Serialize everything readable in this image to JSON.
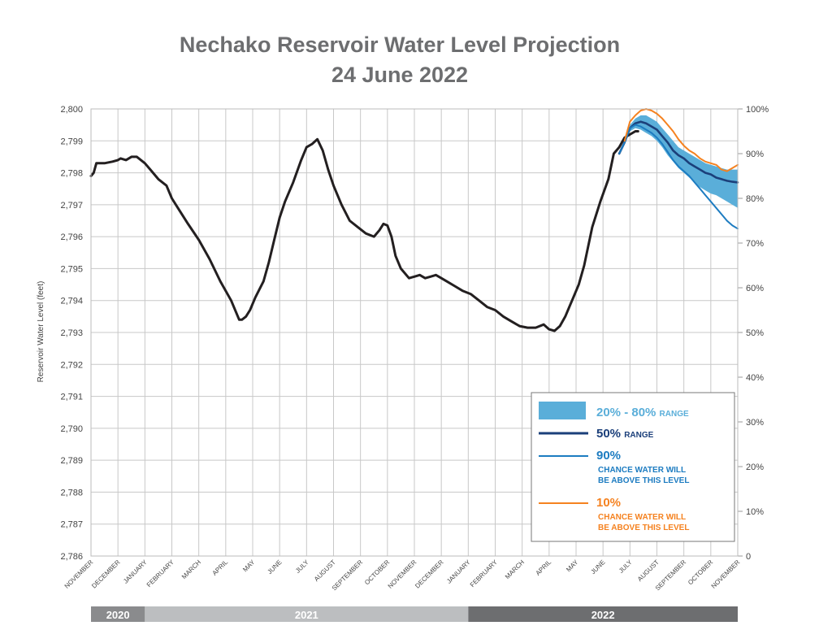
{
  "chart_data": {
    "type": "line",
    "title_line1": "Nechako Reservoir Water Level Projection",
    "title_line2": "24 June 2022",
    "ylabel": "Reservoir Water Level (feet)",
    "ylim": [
      2786,
      2800
    ],
    "yticks": [
      "2,786",
      "2,787",
      "2,788",
      "2,789",
      "2,790",
      "2,791",
      "2,792",
      "2,793",
      "2,794",
      "2,795",
      "2,796",
      "2,797",
      "2,798",
      "2,799",
      "2,800"
    ],
    "y2ticks": [
      "0",
      "10%",
      "20%",
      "30%",
      "40%",
      "50%",
      "60%",
      "70%",
      "80%",
      "90%",
      "100%"
    ],
    "grid": true,
    "x_months": [
      "NOVEMBER",
      "DECEMBER",
      "JANUARY",
      "FEBRUARY",
      "MARCH",
      "APRIL",
      "MAY",
      "JUNE",
      "JULY",
      "AUGUST",
      "SEPTEMBER",
      "OCTOBER",
      "NOVEMBER",
      "DECEMBER",
      "JANUARY",
      "FEBRUARY",
      "MARCH",
      "APRIL",
      "MAY",
      "JUNE",
      "JULY",
      "AUGUST",
      "SEPTEMBER",
      "OCTOBER",
      "NOVEMBER"
    ],
    "years": [
      {
        "label": "2020",
        "start": 0,
        "end": 2,
        "color": "#8a8b8d"
      },
      {
        "label": "2021",
        "start": 2,
        "end": 14,
        "color": "#bcbec0"
      },
      {
        "label": "2022",
        "start": 14,
        "end": 24,
        "color": "#6d6e70"
      }
    ],
    "legend_position": "lower-right",
    "series": [
      {
        "name": "historical",
        "color": "#231f20",
        "x": [
          0,
          0.1,
          0.2,
          0.5,
          0.8,
          1.0,
          1.1,
          1.3,
          1.5,
          1.7,
          2.0,
          2.2,
          2.5,
          2.8,
          3.0,
          3.3,
          3.6,
          4.0,
          4.4,
          4.8,
          5.2,
          5.5,
          5.6,
          5.75,
          5.9,
          6.1,
          6.4,
          6.6,
          6.8,
          7.0,
          7.2,
          7.5,
          7.8,
          8.0,
          8.2,
          8.4,
          8.6,
          8.8,
          9.0,
          9.3,
          9.6,
          9.9,
          10.2,
          10.5,
          10.7,
          10.85,
          11.0,
          11.15,
          11.3,
          11.5,
          11.8,
          12.0,
          12.2,
          12.4,
          12.6,
          12.8,
          13.0,
          13.2,
          13.5,
          13.8,
          14.1,
          14.4,
          14.7,
          15.0,
          15.3,
          15.6,
          15.9,
          16.2,
          16.5,
          16.8,
          17.0,
          17.2,
          17.4,
          17.6,
          17.75,
          17.9,
          18.1,
          18.3,
          18.6,
          18.9,
          19.2,
          19.4,
          19.6,
          19.8,
          20.0,
          20.2,
          20.3
        ],
        "values": [
          2797.9,
          2798.0,
          2798.3,
          2798.3,
          2798.35,
          2798.4,
          2798.45,
          2798.4,
          2798.5,
          2798.5,
          2798.3,
          2798.1,
          2797.8,
          2797.6,
          2797.2,
          2796.8,
          2796.4,
          2795.9,
          2795.3,
          2794.6,
          2794.0,
          2793.4,
          2793.4,
          2793.5,
          2793.7,
          2794.1,
          2794.6,
          2795.2,
          2795.9,
          2796.6,
          2797.1,
          2797.7,
          2798.4,
          2798.8,
          2798.9,
          2799.05,
          2798.7,
          2798.1,
          2797.6,
          2797.0,
          2796.5,
          2796.3,
          2796.1,
          2796.0,
          2796.2,
          2796.4,
          2796.35,
          2796.0,
          2795.4,
          2795.0,
          2794.7,
          2794.75,
          2794.8,
          2794.7,
          2794.75,
          2794.8,
          2794.7,
          2794.6,
          2794.45,
          2794.3,
          2794.2,
          2794.0,
          2793.8,
          2793.7,
          2793.5,
          2793.35,
          2793.2,
          2793.15,
          2793.15,
          2793.25,
          2793.1,
          2793.05,
          2793.2,
          2793.5,
          2793.8,
          2794.1,
          2794.5,
          2795.1,
          2796.3,
          2797.1,
          2797.8,
          2798.6,
          2798.8,
          2799.1,
          2799.2,
          2799.3,
          2799.3
        ]
      },
      {
        "name": "50% RANGE",
        "color": "#1b3f7a",
        "x": [
          19.6,
          19.8,
          20.0,
          20.2,
          20.4,
          20.6,
          20.8,
          21.0,
          21.2,
          21.4,
          21.6,
          21.8,
          22.0,
          22.2,
          22.4,
          22.6,
          22.8,
          23.0,
          23.2,
          23.4,
          23.6,
          23.8,
          24.0
        ],
        "values": [
          2798.6,
          2798.95,
          2799.4,
          2799.55,
          2799.6,
          2799.55,
          2799.45,
          2799.35,
          2799.15,
          2798.95,
          2798.7,
          2798.55,
          2798.45,
          2798.3,
          2798.2,
          2798.1,
          2798.0,
          2797.95,
          2797.85,
          2797.8,
          2797.75,
          2797.72,
          2797.7
        ]
      },
      {
        "name": "90%",
        "color": "#1d7cc1",
        "x": [
          19.6,
          19.8,
          20.0,
          20.2,
          20.4,
          20.6,
          20.8,
          21.0,
          21.2,
          21.4,
          21.6,
          21.8,
          22.0,
          22.2,
          22.4,
          22.6,
          22.8,
          23.0,
          23.2,
          23.4,
          23.6,
          23.8,
          24.0
        ],
        "values": [
          2798.6,
          2798.95,
          2799.4,
          2799.5,
          2799.45,
          2799.35,
          2799.25,
          2799.1,
          2798.9,
          2798.65,
          2798.4,
          2798.2,
          2798.05,
          2797.9,
          2797.7,
          2797.5,
          2797.3,
          2797.1,
          2796.9,
          2796.7,
          2796.5,
          2796.35,
          2796.25
        ]
      },
      {
        "name": "10%",
        "color": "#f58220",
        "x": [
          19.8,
          20.0,
          20.2,
          20.4,
          20.6,
          20.8,
          21.0,
          21.2,
          21.4,
          21.6,
          21.8,
          22.0,
          22.2,
          22.4,
          22.6,
          22.8,
          23.0,
          23.2,
          23.4,
          23.6,
          23.8,
          24.0
        ],
        "values": [
          2799.0,
          2799.6,
          2799.8,
          2799.95,
          2800.0,
          2799.95,
          2799.85,
          2799.7,
          2799.5,
          2799.3,
          2799.05,
          2798.85,
          2798.7,
          2798.6,
          2798.45,
          2798.35,
          2798.3,
          2798.25,
          2798.1,
          2798.05,
          2798.15,
          2798.25
        ]
      }
    ],
    "band": {
      "name": "20% - 80% RANGE",
      "color": "#5aaed9",
      "x": [
        19.8,
        20.0,
        20.2,
        20.4,
        20.6,
        20.8,
        21.0,
        21.2,
        21.4,
        21.6,
        21.8,
        22.0,
        22.2,
        22.4,
        22.6,
        22.8,
        23.0,
        23.2,
        23.4,
        23.6,
        23.8,
        24.0
      ],
      "upper": [
        2799.0,
        2799.5,
        2799.7,
        2799.8,
        2799.8,
        2799.7,
        2799.6,
        2799.4,
        2799.2,
        2799.0,
        2798.8,
        2798.7,
        2798.6,
        2798.5,
        2798.4,
        2798.3,
        2798.25,
        2798.2,
        2798.15,
        2798.1,
        2798.1,
        2798.1
      ],
      "lower": [
        2798.9,
        2799.3,
        2799.4,
        2799.35,
        2799.25,
        2799.15,
        2799.0,
        2798.8,
        2798.55,
        2798.35,
        2798.15,
        2798.0,
        2797.85,
        2797.7,
        2797.55,
        2797.45,
        2797.35,
        2797.3,
        2797.2,
        2797.1,
        2797.0,
        2796.9
      ]
    },
    "legend": {
      "band_pct": "20% - 80%",
      "band_word": "RANGE",
      "median_pct": "50%",
      "median_word": "RANGE",
      "p90_pct": "90%",
      "p90_line1": "CHANCE WATER WILL",
      "p90_line2": "BE ABOVE THIS LEVEL",
      "p10_pct": "10%",
      "p10_line1": "CHANCE WATER WILL",
      "p10_line2": "BE ABOVE THIS LEVEL"
    }
  }
}
